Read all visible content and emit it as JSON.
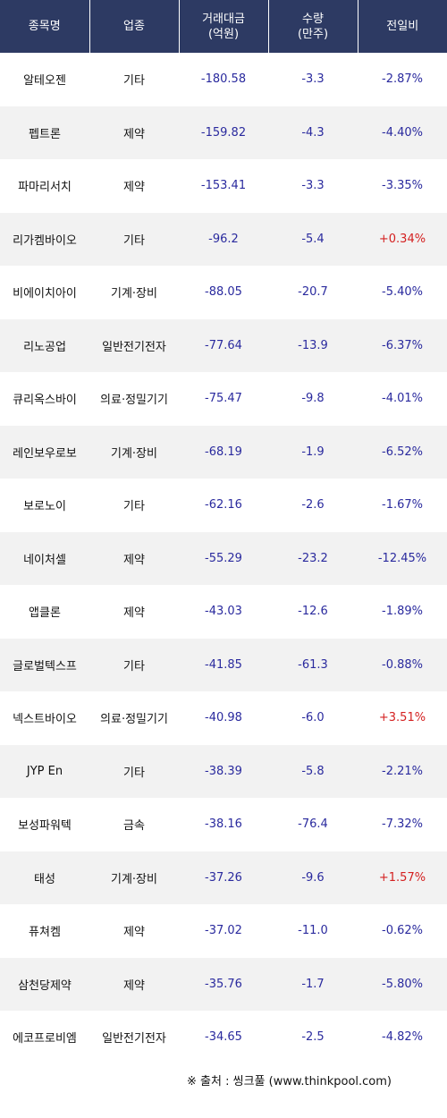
{
  "header": {
    "col_name": "종목명",
    "col_sector": "업종",
    "col_amount": "거래대금\n(억원)",
    "col_volume": "수량\n(만주)",
    "col_change": "전일비"
  },
  "rows": [
    {
      "name": "알테오젠",
      "sector": "기타",
      "amount": "-180.58",
      "volume": "-3.3",
      "change": "-2.87%",
      "direction": "down"
    },
    {
      "name": "펩트론",
      "sector": "제약",
      "amount": "-159.82",
      "volume": "-4.3",
      "change": "-4.40%",
      "direction": "down"
    },
    {
      "name": "파마리서치",
      "sector": "제약",
      "amount": "-153.41",
      "volume": "-3.3",
      "change": "-3.35%",
      "direction": "down"
    },
    {
      "name": "리가켐바이오",
      "sector": "기타",
      "amount": "-96.2",
      "volume": "-5.4",
      "change": "+0.34%",
      "direction": "up"
    },
    {
      "name": "비에이치아이",
      "sector": "기계·장비",
      "amount": "-88.05",
      "volume": "-20.7",
      "change": "-5.40%",
      "direction": "down"
    },
    {
      "name": "리노공업",
      "sector": "일반전기전자",
      "amount": "-77.64",
      "volume": "-13.9",
      "change": "-6.37%",
      "direction": "down"
    },
    {
      "name": "큐리옥스바이",
      "sector": "의료·정밀기기",
      "amount": "-75.47",
      "volume": "-9.8",
      "change": "-4.01%",
      "direction": "down"
    },
    {
      "name": "레인보우로보",
      "sector": "기계·장비",
      "amount": "-68.19",
      "volume": "-1.9",
      "change": "-6.52%",
      "direction": "down"
    },
    {
      "name": "보로노이",
      "sector": "기타",
      "amount": "-62.16",
      "volume": "-2.6",
      "change": "-1.67%",
      "direction": "down"
    },
    {
      "name": "네이처셀",
      "sector": "제약",
      "amount": "-55.29",
      "volume": "-23.2",
      "change": "-12.45%",
      "direction": "down"
    },
    {
      "name": "앱클론",
      "sector": "제약",
      "amount": "-43.03",
      "volume": "-12.6",
      "change": "-1.89%",
      "direction": "down"
    },
    {
      "name": "글로벌텍스프",
      "sector": "기타",
      "amount": "-41.85",
      "volume": "-61.3",
      "change": "-0.88%",
      "direction": "down"
    },
    {
      "name": "넥스트바이오",
      "sector": "의료·정밀기기",
      "amount": "-40.98",
      "volume": "-6.0",
      "change": "+3.51%",
      "direction": "up"
    },
    {
      "name": "JYP En",
      "sector": "기타",
      "amount": "-38.39",
      "volume": "-5.8",
      "change": "-2.21%",
      "direction": "down"
    },
    {
      "name": "보성파워텍",
      "sector": "금속",
      "amount": "-38.16",
      "volume": "-76.4",
      "change": "-7.32%",
      "direction": "down"
    },
    {
      "name": "태성",
      "sector": "기계·장비",
      "amount": "-37.26",
      "volume": "-9.6",
      "change": "+1.57%",
      "direction": "up"
    },
    {
      "name": "퓨쳐켐",
      "sector": "제약",
      "amount": "-37.02",
      "volume": "-11.0",
      "change": "-0.62%",
      "direction": "down"
    },
    {
      "name": "삼천당제약",
      "sector": "제약",
      "amount": "-35.76",
      "volume": "-1.7",
      "change": "-5.80%",
      "direction": "down"
    },
    {
      "name": "에코프로비엠",
      "sector": "일반전기전자",
      "amount": "-34.65",
      "volume": "-2.5",
      "change": "-4.82%",
      "direction": "down"
    }
  ],
  "source": "※ 출처 : 씽크풀 (www.thinkpool.com)",
  "colors": {
    "header_bg": "#2d3a63",
    "header_text": "#ffffff",
    "down": "#2a2a9e",
    "up": "#d42020",
    "stripe": "#f2f2f2"
  }
}
